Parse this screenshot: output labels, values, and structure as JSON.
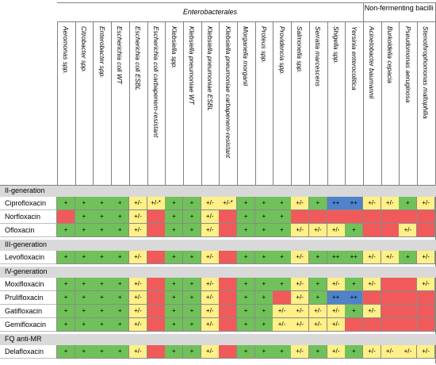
{
  "colors": {
    "green": "#70c15a",
    "yellow": "#fff088",
    "red": "#f05a5a",
    "blue": "#4f82c8",
    "section_bg": "#d9d9d9"
  },
  "header": {
    "groups": [
      {
        "name": "Enterobacterales",
        "italic": true
      },
      {
        "name": "Non-fermenting bacilli",
        "italic": false
      }
    ],
    "columns": [
      "Aeromonas spp.",
      "Citrobacter spp.",
      "Enterobacter spp.",
      "Escherichia coli WT",
      "Escherichia coli ESBL",
      "Escherichia coli carbapenem-resistant",
      "Klebsiella spp.",
      "Klebsiella pneumoniae WT",
      "Klebsiella pneumoniae ESBL",
      "Klebsiella pneumoniae carbapenem-resistant",
      "Morganella morganii",
      "Proteus spp.",
      "Providencia spp.",
      "Salmonella spp.",
      "Serratia marcescens",
      "Shigella spp.",
      "Yersinia enterocolitica",
      "Acinetobacter baumannii",
      "Burkoldelia cepacia",
      "Pseudomonas aeruginosa",
      "Stenothrophomonas maltophilia"
    ]
  },
  "sections": [
    {
      "title": "II-generation",
      "rows": [
        {
          "drug": "Ciprofloxacin",
          "cells": [
            [
              "g",
              "+"
            ],
            [
              "g",
              "+"
            ],
            [
              "g",
              "+"
            ],
            [
              "g",
              "+"
            ],
            [
              "y",
              "+/-"
            ],
            [
              "y",
              "+/-*"
            ],
            [
              "g",
              "+"
            ],
            [
              "g",
              "+"
            ],
            [
              "y",
              "+/-"
            ],
            [
              "y",
              "+/-*"
            ],
            [
              "g",
              "+"
            ],
            [
              "g",
              "+"
            ],
            [
              "g",
              "+"
            ],
            [
              "y",
              "+/-"
            ],
            [
              "g",
              "+"
            ],
            [
              "b",
              "++"
            ],
            [
              "b",
              "++"
            ],
            [
              "y",
              "+/-"
            ],
            [
              "y",
              "+/-"
            ],
            [
              "g",
              "+"
            ],
            [
              "y",
              "+/-"
            ]
          ]
        },
        {
          "drug": "Norfloxacin",
          "cells": [
            [
              "r",
              ""
            ],
            [
              "g",
              "+"
            ],
            [
              "g",
              "+"
            ],
            [
              "g",
              "+"
            ],
            [
              "y",
              "+/-"
            ],
            [
              "r",
              ""
            ],
            [
              "g",
              "+"
            ],
            [
              "g",
              "+"
            ],
            [
              "y",
              "+/-"
            ],
            [
              "r",
              ""
            ],
            [
              "g",
              "+"
            ],
            [
              "g",
              "+"
            ],
            [
              "g",
              "+"
            ],
            [
              "r",
              ""
            ],
            [
              "r",
              ""
            ],
            [
              "r",
              ""
            ],
            [
              "r",
              ""
            ],
            [
              "r",
              ""
            ],
            [
              "r",
              ""
            ],
            [
              "r",
              ""
            ],
            [
              "r",
              ""
            ]
          ]
        },
        {
          "drug": "Ofloxacin",
          "cells": [
            [
              "g",
              "+"
            ],
            [
              "g",
              "+"
            ],
            [
              "g",
              "+"
            ],
            [
              "g",
              "+"
            ],
            [
              "y",
              "+/-"
            ],
            [
              "r",
              ""
            ],
            [
              "g",
              "+"
            ],
            [
              "g",
              "+"
            ],
            [
              "y",
              "+/-"
            ],
            [
              "r",
              ""
            ],
            [
              "g",
              "+"
            ],
            [
              "g",
              "+"
            ],
            [
              "g",
              "+"
            ],
            [
              "y",
              "+/-"
            ],
            [
              "y",
              "+/-"
            ],
            [
              "y",
              "+/-"
            ],
            [
              "g",
              "+"
            ],
            [
              "r",
              ""
            ],
            [
              "r",
              ""
            ],
            [
              "y",
              "+/-"
            ],
            [
              "r",
              ""
            ]
          ]
        }
      ]
    },
    {
      "title": "III-generation",
      "rows": [
        {
          "drug": "Levofloxacin",
          "cells": [
            [
              "g",
              "+"
            ],
            [
              "g",
              "+"
            ],
            [
              "g",
              "+"
            ],
            [
              "g",
              "+"
            ],
            [
              "y",
              "+/-"
            ],
            [
              "r",
              ""
            ],
            [
              "g",
              "+"
            ],
            [
              "g",
              "+"
            ],
            [
              "y",
              "+/-"
            ],
            [
              "r",
              ""
            ],
            [
              "g",
              "+"
            ],
            [
              "g",
              "+"
            ],
            [
              "g",
              "+"
            ],
            [
              "y",
              "+/-"
            ],
            [
              "g",
              "+"
            ],
            [
              "g",
              "++"
            ],
            [
              "g",
              "++"
            ],
            [
              "y",
              "+/-"
            ],
            [
              "y",
              "+/-"
            ],
            [
              "g",
              "+"
            ],
            [
              "y",
              "+/-"
            ]
          ]
        }
      ]
    },
    {
      "title": "IV-generation",
      "rows": [
        {
          "drug": "Moxifloxacin",
          "cells": [
            [
              "g",
              "+"
            ],
            [
              "g",
              "+"
            ],
            [
              "g",
              "+"
            ],
            [
              "g",
              "+"
            ],
            [
              "y",
              "+/-"
            ],
            [
              "r",
              ""
            ],
            [
              "g",
              "+"
            ],
            [
              "g",
              "+"
            ],
            [
              "y",
              "+/-"
            ],
            [
              "r",
              ""
            ],
            [
              "g",
              "+"
            ],
            [
              "g",
              "+"
            ],
            [
              "g",
              "+"
            ],
            [
              "y",
              "+/-"
            ],
            [
              "g",
              "+"
            ],
            [
              "y",
              "+/-"
            ],
            [
              "g",
              "+"
            ],
            [
              "y",
              "+/-"
            ],
            [
              "r",
              ""
            ],
            [
              "r",
              ""
            ],
            [
              "y",
              "+/-"
            ]
          ]
        },
        {
          "drug": "Prulifloxacin",
          "cells": [
            [
              "g",
              "+"
            ],
            [
              "g",
              "+"
            ],
            [
              "g",
              "+"
            ],
            [
              "g",
              "+"
            ],
            [
              "y",
              "+/-"
            ],
            [
              "r",
              ""
            ],
            [
              "g",
              "+"
            ],
            [
              "g",
              "+"
            ],
            [
              "y",
              "+/-"
            ],
            [
              "r",
              ""
            ],
            [
              "g",
              "+"
            ],
            [
              "g",
              "+"
            ],
            [
              "r",
              ""
            ],
            [
              "y",
              "+/-"
            ],
            [
              "g",
              "+"
            ],
            [
              "b",
              "++"
            ],
            [
              "b",
              "++"
            ],
            [
              "r",
              ""
            ],
            [
              "r",
              ""
            ],
            [
              "r",
              ""
            ],
            [
              "r",
              ""
            ]
          ]
        },
        {
          "drug": "Gatifloxacin",
          "cells": [
            [
              "g",
              "+"
            ],
            [
              "g",
              "+"
            ],
            [
              "g",
              "+"
            ],
            [
              "g",
              "+"
            ],
            [
              "y",
              "+/-"
            ],
            [
              "r",
              ""
            ],
            [
              "g",
              "+"
            ],
            [
              "g",
              "+"
            ],
            [
              "y",
              "+/-"
            ],
            [
              "r",
              ""
            ],
            [
              "g",
              "+"
            ],
            [
              "g",
              "+"
            ],
            [
              "y",
              "+/-"
            ],
            [
              "y",
              "+/-"
            ],
            [
              "y",
              "+/-"
            ],
            [
              "y",
              "+/-"
            ],
            [
              "g",
              "+"
            ],
            [
              "y",
              "+/-"
            ],
            [
              "r",
              ""
            ],
            [
              "r",
              ""
            ],
            [
              "r",
              ""
            ]
          ]
        },
        {
          "drug": "Gemifloxacin",
          "cells": [
            [
              "g",
              "+"
            ],
            [
              "g",
              "+"
            ],
            [
              "g",
              "+"
            ],
            [
              "g",
              "+"
            ],
            [
              "y",
              "+/-"
            ],
            [
              "r",
              ""
            ],
            [
              "g",
              "+"
            ],
            [
              "g",
              "+"
            ],
            [
              "y",
              "+/-"
            ],
            [
              "r",
              ""
            ],
            [
              "g",
              "+"
            ],
            [
              "g",
              "+"
            ],
            [
              "y",
              "+/-"
            ],
            [
              "y",
              "+/-"
            ],
            [
              "y",
              "+/-"
            ],
            [
              "y",
              "+/-"
            ],
            [
              "r",
              ""
            ],
            [
              "r",
              ""
            ],
            [
              "r",
              ""
            ],
            [
              "r",
              ""
            ],
            [
              "r",
              ""
            ]
          ]
        }
      ]
    },
    {
      "title": "FQ anti-MR",
      "rows": [
        {
          "drug": "Delafloxacin",
          "cells": [
            [
              "g",
              "+"
            ],
            [
              "g",
              "+"
            ],
            [
              "g",
              "+"
            ],
            [
              "g",
              "+"
            ],
            [
              "y",
              "+/-"
            ],
            [
              "r",
              ""
            ],
            [
              "g",
              "+"
            ],
            [
              "g",
              "+"
            ],
            [
              "y",
              "+/-"
            ],
            [
              "r",
              ""
            ],
            [
              "g",
              "+"
            ],
            [
              "g",
              "+"
            ],
            [
              "g",
              "+"
            ],
            [
              "y",
              "+/-"
            ],
            [
              "g",
              "+"
            ],
            [
              "y",
              "+/-"
            ],
            [
              "g",
              "+"
            ],
            [
              "y",
              "+/-"
            ],
            [
              "y",
              "+/-"
            ],
            [
              "y",
              "+/-"
            ],
            [
              "y",
              "+/-"
            ]
          ]
        }
      ]
    }
  ]
}
